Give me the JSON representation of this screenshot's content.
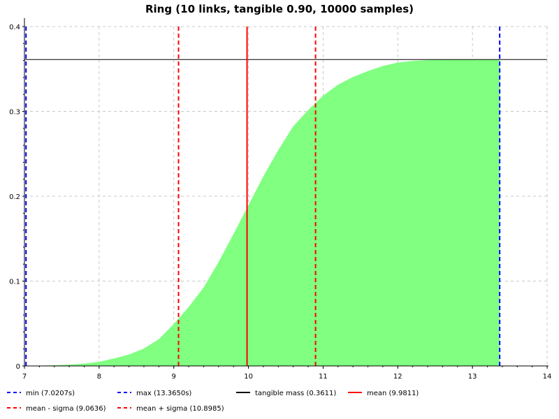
{
  "chart_data": {
    "type": "area",
    "title": "Ring (10 links, tangible 0.90, 10000 samples)",
    "xlabel": "",
    "ylabel": "",
    "xlim": [
      7,
      14
    ],
    "ylim": [
      0,
      0.4
    ],
    "x_ticks": [
      7,
      8,
      9,
      10,
      11,
      12,
      13,
      14
    ],
    "y_ticks": [
      0,
      0.1,
      0.2,
      0.3,
      0.4
    ],
    "x_tick_labels": [
      "7",
      "8",
      "9",
      "10",
      "11",
      "12",
      "13",
      "14"
    ],
    "y_tick_labels": [
      "0",
      "0.1",
      "0.2",
      "0.3",
      "0.4"
    ],
    "grid": true,
    "legend_position": "bottom",
    "series": [
      {
        "kind": "area",
        "color": "#80ff80",
        "x": [
          7.0207,
          7.2,
          7.4,
          7.6,
          7.8,
          8.0,
          8.2,
          8.4,
          8.6,
          8.8,
          9.0,
          9.2,
          9.4,
          9.6,
          9.8,
          10.0,
          10.2,
          10.4,
          10.6,
          10.8,
          11.0,
          11.2,
          11.4,
          11.6,
          11.8,
          12.0,
          12.2,
          12.4,
          12.6,
          12.8,
          13.0,
          13.2,
          13.365
        ],
        "y": [
          0.0,
          0.0003,
          0.0008,
          0.0015,
          0.0028,
          0.0048,
          0.0088,
          0.0135,
          0.0205,
          0.0315,
          0.0495,
          0.0695,
          0.0925,
          0.1225,
          0.1555,
          0.1895,
          0.2235,
          0.2545,
          0.2825,
          0.3015,
          0.3185,
          0.3315,
          0.3405,
          0.3475,
          0.3535,
          0.3575,
          0.3595,
          0.3605,
          0.3609,
          0.361,
          0.3611,
          0.3611,
          0.3611
        ]
      }
    ],
    "vlines": [
      {
        "name": "min (7.0207s)",
        "x": 7.0207,
        "color": "#0000ff",
        "dash": true
      },
      {
        "name": "max (13.3650s)",
        "x": 13.365,
        "color": "#0000ff",
        "dash": true
      },
      {
        "name": "mean (9.9811)",
        "x": 9.9811,
        "color": "#ff0000",
        "dash": false
      },
      {
        "name": "mean - sigma (9.0636)",
        "x": 9.0636,
        "color": "#ff0000",
        "dash": true
      },
      {
        "name": "mean + sigma (10.8985)",
        "x": 10.8985,
        "color": "#ff0000",
        "dash": true
      }
    ],
    "hlines": [
      {
        "name": "tangible mass (0.3611)",
        "y": 0.3611,
        "color": "#000000",
        "dash": false
      }
    ],
    "legend": [
      {
        "label": "min (7.0207s)",
        "color": "#0000ff",
        "dash": true
      },
      {
        "label": "max (13.3650s)",
        "color": "#0000ff",
        "dash": true
      },
      {
        "label": "tangible mass (0.3611)",
        "color": "#000000",
        "dash": false
      },
      {
        "label": "mean (9.9811)",
        "color": "#ff0000",
        "dash": false
      },
      {
        "label": "mean - sigma (9.0636)",
        "color": "#ff0000",
        "dash": true
      },
      {
        "label": "mean + sigma (10.8985)",
        "color": "#ff0000",
        "dash": true
      }
    ]
  }
}
